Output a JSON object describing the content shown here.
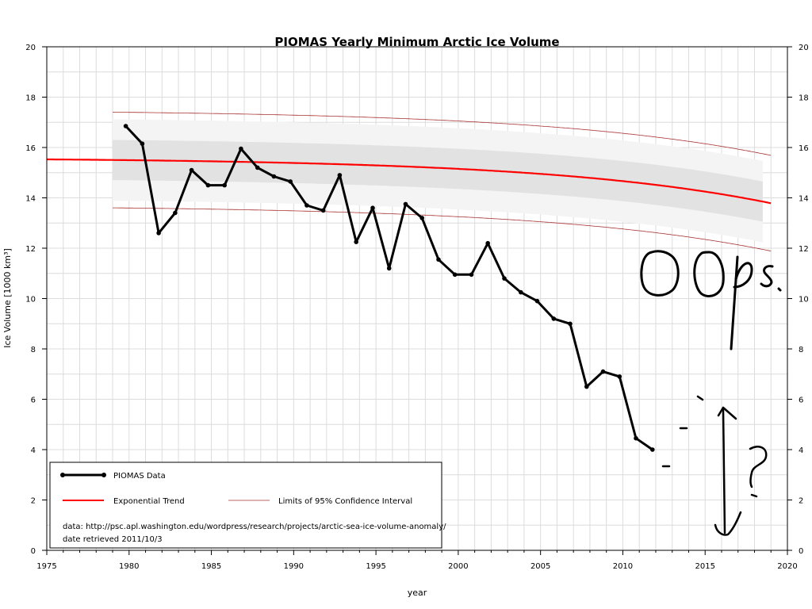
{
  "chart_data": {
    "type": "line",
    "title": "PIOMAS Yearly Minimum Arctic Ice Volume",
    "xlabel": "year",
    "ylabel": "Ice Volume [1000 km³]",
    "xlim": [
      1975,
      2020
    ],
    "ylim": [
      0,
      20
    ],
    "x_ticks": [
      "1975",
      "1980",
      "1985",
      "1990",
      "1995",
      "2000",
      "2005",
      "2010",
      "2015",
      "2020"
    ],
    "y_ticks": [
      "0",
      "2",
      "4",
      "6",
      "8",
      "10",
      "12",
      "14",
      "16",
      "18",
      "20"
    ],
    "grid": true,
    "legend_position": "bottom-left",
    "colors": {
      "data": "#000000",
      "trend": "#ff0000",
      "ci": "#a83232",
      "band_outer": "#f4f4f4",
      "band_inner": "#e2e2e2"
    },
    "series": [
      {
        "name": "PIOMAS Data",
        "x": [
          1979,
          1980,
          1981,
          1982,
          1983,
          1984,
          1985,
          1986,
          1987,
          1988,
          1989,
          1990,
          1991,
          1992,
          1993,
          1994,
          1995,
          1996,
          1997,
          1998,
          1999,
          2000,
          2001,
          2002,
          2003,
          2004,
          2005,
          2006,
          2007,
          2008,
          2009,
          2010,
          2011
        ],
        "y": [
          16.85,
          16.15,
          12.6,
          13.4,
          15.1,
          14.5,
          14.5,
          15.95,
          15.2,
          14.85,
          14.65,
          13.7,
          13.5,
          14.9,
          12.25,
          13.6,
          11.2,
          13.75,
          13.2,
          11.55,
          10.95,
          10.95,
          12.2,
          10.8,
          10.25,
          9.9,
          9.2,
          9.0,
          6.5,
          7.1,
          6.9,
          4.45,
          4.0
        ]
      },
      {
        "name": "Exponential Trend",
        "a": 15.6,
        "b": 0.0735,
        "c": 35.9,
        "x0": 1975
      },
      {
        "name": "Limits of 95% Confidence Interval",
        "offset": 1.9
      }
    ],
    "annotations": {
      "data_source": "data: http://psc.apl.washington.edu/wordpress/research/projects/arctic-sea-ice-volume-anomaly/",
      "date_retrieved": "date retrieved 2011/10/3",
      "handwritten": "OOps.",
      "handwritten_mark": "?"
    }
  }
}
